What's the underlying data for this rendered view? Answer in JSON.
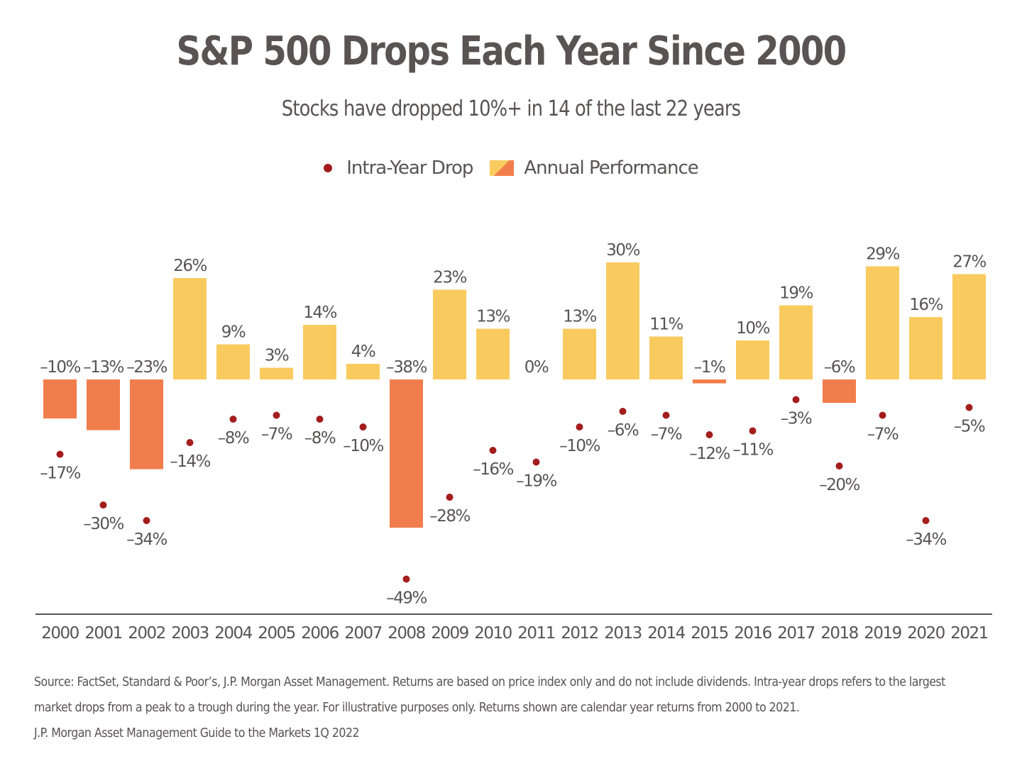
{
  "title": "S&P 500 Drops Each Year Since 2000",
  "subtitle": "Stocks have dropped 10%+ in 14 of the last 22 years",
  "legend": {
    "drop_label": "Intra-Year Drop",
    "performance_label": "Annual Performance"
  },
  "colors": {
    "positive_bar": "#f9cb5f",
    "negative_bar": "#f27d4c",
    "drop_dot": "#a31d1d",
    "text": "#595354",
    "axis": "#595354"
  },
  "chart_data": {
    "type": "bar",
    "categories": [
      "2000",
      "2001",
      "2002",
      "2003",
      "2004",
      "2005",
      "2006",
      "2007",
      "2008",
      "2009",
      "2010",
      "2011",
      "2012",
      "2013",
      "2014",
      "2015",
      "2016",
      "2017",
      "2018",
      "2019",
      "2020",
      "2021"
    ],
    "series": [
      {
        "name": "Annual Performance",
        "type": "bar",
        "values": [
          -10,
          -13,
          -23,
          26,
          9,
          3,
          14,
          4,
          -38,
          23,
          13,
          0,
          13,
          30,
          11,
          -1,
          10,
          19,
          -6,
          29,
          16,
          27
        ]
      },
      {
        "name": "Intra-Year Drop",
        "type": "scatter",
        "values": [
          -17,
          -30,
          -34,
          -14,
          -8,
          -7,
          -8,
          -10,
          -49,
          -28,
          -16,
          -19,
          -10,
          -6,
          -7,
          -12,
          -11,
          -3,
          -20,
          -7,
          -34,
          -5
        ]
      }
    ],
    "value_suffix": "%",
    "ylim": [
      -60,
      30
    ],
    "grid": false,
    "legend_position": "top-center"
  },
  "footnote": {
    "line1": "Source: FactSet, Standard & Poor’s, J.P. Morgan Asset Management. Returns are based on price index only and do not include dividends. Intra-year drops refers to the largest",
    "line2": "market drops from a peak to a trough during the year. For illustrative purposes only. Returns shown are calendar year returns from 2000 to 2021.",
    "line3": "J.P. Morgan Asset Management Guide to the Markets 1Q 2022"
  }
}
